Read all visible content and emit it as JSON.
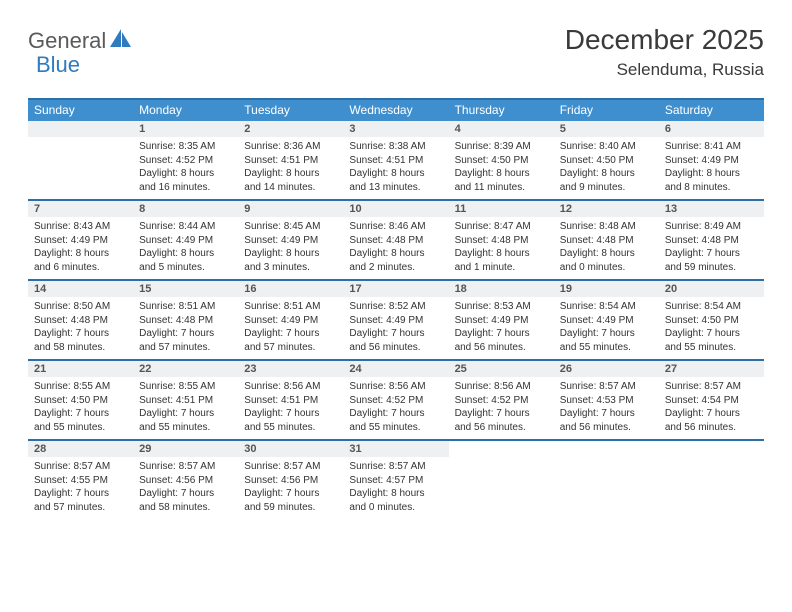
{
  "logo": {
    "text1": "General",
    "text2": "Blue"
  },
  "header": {
    "month_title": "December 2025",
    "location": "Selenduma, Russia"
  },
  "colors": {
    "header_bg": "#3f8fcf",
    "border": "#2b6fa8",
    "daynum_bg": "#eef0f1"
  },
  "day_names": [
    "Sunday",
    "Monday",
    "Tuesday",
    "Wednesday",
    "Thursday",
    "Friday",
    "Saturday"
  ],
  "weeks": [
    [
      {
        "n": "",
        "lines": []
      },
      {
        "n": "1",
        "lines": [
          "Sunrise: 8:35 AM",
          "Sunset: 4:52 PM",
          "Daylight: 8 hours",
          "and 16 minutes."
        ]
      },
      {
        "n": "2",
        "lines": [
          "Sunrise: 8:36 AM",
          "Sunset: 4:51 PM",
          "Daylight: 8 hours",
          "and 14 minutes."
        ]
      },
      {
        "n": "3",
        "lines": [
          "Sunrise: 8:38 AM",
          "Sunset: 4:51 PM",
          "Daylight: 8 hours",
          "and 13 minutes."
        ]
      },
      {
        "n": "4",
        "lines": [
          "Sunrise: 8:39 AM",
          "Sunset: 4:50 PM",
          "Daylight: 8 hours",
          "and 11 minutes."
        ]
      },
      {
        "n": "5",
        "lines": [
          "Sunrise: 8:40 AM",
          "Sunset: 4:50 PM",
          "Daylight: 8 hours",
          "and 9 minutes."
        ]
      },
      {
        "n": "6",
        "lines": [
          "Sunrise: 8:41 AM",
          "Sunset: 4:49 PM",
          "Daylight: 8 hours",
          "and 8 minutes."
        ]
      }
    ],
    [
      {
        "n": "7",
        "lines": [
          "Sunrise: 8:43 AM",
          "Sunset: 4:49 PM",
          "Daylight: 8 hours",
          "and 6 minutes."
        ]
      },
      {
        "n": "8",
        "lines": [
          "Sunrise: 8:44 AM",
          "Sunset: 4:49 PM",
          "Daylight: 8 hours",
          "and 5 minutes."
        ]
      },
      {
        "n": "9",
        "lines": [
          "Sunrise: 8:45 AM",
          "Sunset: 4:49 PM",
          "Daylight: 8 hours",
          "and 3 minutes."
        ]
      },
      {
        "n": "10",
        "lines": [
          "Sunrise: 8:46 AM",
          "Sunset: 4:48 PM",
          "Daylight: 8 hours",
          "and 2 minutes."
        ]
      },
      {
        "n": "11",
        "lines": [
          "Sunrise: 8:47 AM",
          "Sunset: 4:48 PM",
          "Daylight: 8 hours",
          "and 1 minute."
        ]
      },
      {
        "n": "12",
        "lines": [
          "Sunrise: 8:48 AM",
          "Sunset: 4:48 PM",
          "Daylight: 8 hours",
          "and 0 minutes."
        ]
      },
      {
        "n": "13",
        "lines": [
          "Sunrise: 8:49 AM",
          "Sunset: 4:48 PM",
          "Daylight: 7 hours",
          "and 59 minutes."
        ]
      }
    ],
    [
      {
        "n": "14",
        "lines": [
          "Sunrise: 8:50 AM",
          "Sunset: 4:48 PM",
          "Daylight: 7 hours",
          "and 58 minutes."
        ]
      },
      {
        "n": "15",
        "lines": [
          "Sunrise: 8:51 AM",
          "Sunset: 4:48 PM",
          "Daylight: 7 hours",
          "and 57 minutes."
        ]
      },
      {
        "n": "16",
        "lines": [
          "Sunrise: 8:51 AM",
          "Sunset: 4:49 PM",
          "Daylight: 7 hours",
          "and 57 minutes."
        ]
      },
      {
        "n": "17",
        "lines": [
          "Sunrise: 8:52 AM",
          "Sunset: 4:49 PM",
          "Daylight: 7 hours",
          "and 56 minutes."
        ]
      },
      {
        "n": "18",
        "lines": [
          "Sunrise: 8:53 AM",
          "Sunset: 4:49 PM",
          "Daylight: 7 hours",
          "and 56 minutes."
        ]
      },
      {
        "n": "19",
        "lines": [
          "Sunrise: 8:54 AM",
          "Sunset: 4:49 PM",
          "Daylight: 7 hours",
          "and 55 minutes."
        ]
      },
      {
        "n": "20",
        "lines": [
          "Sunrise: 8:54 AM",
          "Sunset: 4:50 PM",
          "Daylight: 7 hours",
          "and 55 minutes."
        ]
      }
    ],
    [
      {
        "n": "21",
        "lines": [
          "Sunrise: 8:55 AM",
          "Sunset: 4:50 PM",
          "Daylight: 7 hours",
          "and 55 minutes."
        ]
      },
      {
        "n": "22",
        "lines": [
          "Sunrise: 8:55 AM",
          "Sunset: 4:51 PM",
          "Daylight: 7 hours",
          "and 55 minutes."
        ]
      },
      {
        "n": "23",
        "lines": [
          "Sunrise: 8:56 AM",
          "Sunset: 4:51 PM",
          "Daylight: 7 hours",
          "and 55 minutes."
        ]
      },
      {
        "n": "24",
        "lines": [
          "Sunrise: 8:56 AM",
          "Sunset: 4:52 PM",
          "Daylight: 7 hours",
          "and 55 minutes."
        ]
      },
      {
        "n": "25",
        "lines": [
          "Sunrise: 8:56 AM",
          "Sunset: 4:52 PM",
          "Daylight: 7 hours",
          "and 56 minutes."
        ]
      },
      {
        "n": "26",
        "lines": [
          "Sunrise: 8:57 AM",
          "Sunset: 4:53 PM",
          "Daylight: 7 hours",
          "and 56 minutes."
        ]
      },
      {
        "n": "27",
        "lines": [
          "Sunrise: 8:57 AM",
          "Sunset: 4:54 PM",
          "Daylight: 7 hours",
          "and 56 minutes."
        ]
      }
    ],
    [
      {
        "n": "28",
        "lines": [
          "Sunrise: 8:57 AM",
          "Sunset: 4:55 PM",
          "Daylight: 7 hours",
          "and 57 minutes."
        ]
      },
      {
        "n": "29",
        "lines": [
          "Sunrise: 8:57 AM",
          "Sunset: 4:56 PM",
          "Daylight: 7 hours",
          "and 58 minutes."
        ]
      },
      {
        "n": "30",
        "lines": [
          "Sunrise: 8:57 AM",
          "Sunset: 4:56 PM",
          "Daylight: 7 hours",
          "and 59 minutes."
        ]
      },
      {
        "n": "31",
        "lines": [
          "Sunrise: 8:57 AM",
          "Sunset: 4:57 PM",
          "Daylight: 8 hours",
          "and 0 minutes."
        ]
      },
      {
        "n": "",
        "lines": []
      },
      {
        "n": "",
        "lines": []
      },
      {
        "n": "",
        "lines": []
      }
    ]
  ]
}
